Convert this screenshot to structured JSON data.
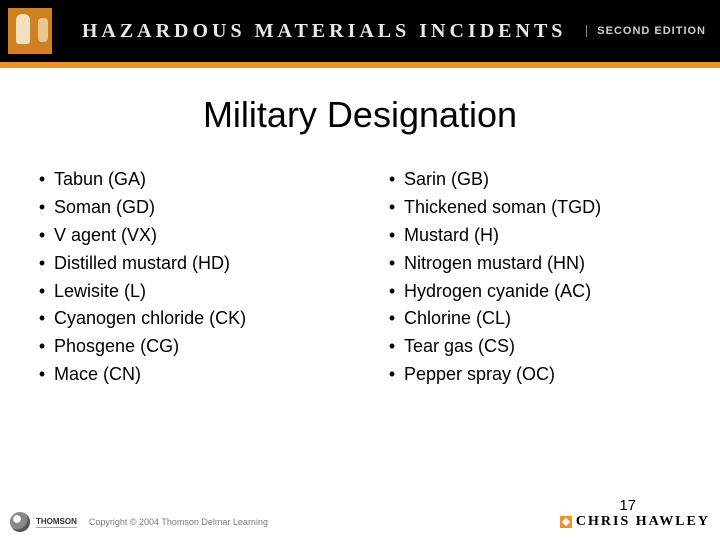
{
  "header": {
    "title": "HAZARDOUS MATERIALS INCIDENTS",
    "subtitle": "SECOND EDITION",
    "underline_color": "#e8962e",
    "bg_color": "#000000",
    "icon_bg": "#d08020"
  },
  "slide": {
    "title": "Military Designation"
  },
  "columns": {
    "left": [
      "Tabun (GA)",
      "Soman (GD)",
      "V agent (VX)",
      "Distilled mustard (HD)",
      "Lewisite (L)",
      "Cyanogen chloride (CK)",
      "Phosgene (CG)",
      "Mace (CN)"
    ],
    "right": [
      "Sarin (GB)",
      "Thickened soman (TGD)",
      "Mustard (H)",
      "Nitrogen mustard (HN)",
      "Hydrogen cyanide (AC)",
      "Chlorine (CL)",
      "Tear gas (CS)",
      "Pepper spray (OC)"
    ]
  },
  "footer": {
    "publisher": "THOMSON",
    "copyright": "Copyright © 2004 Thomson Delmar Learning",
    "author": "CHRIS HAWLEY"
  },
  "page_number": "17",
  "style": {
    "title_fontsize": 36,
    "body_fontsize": 18,
    "bullet_char": "•"
  }
}
